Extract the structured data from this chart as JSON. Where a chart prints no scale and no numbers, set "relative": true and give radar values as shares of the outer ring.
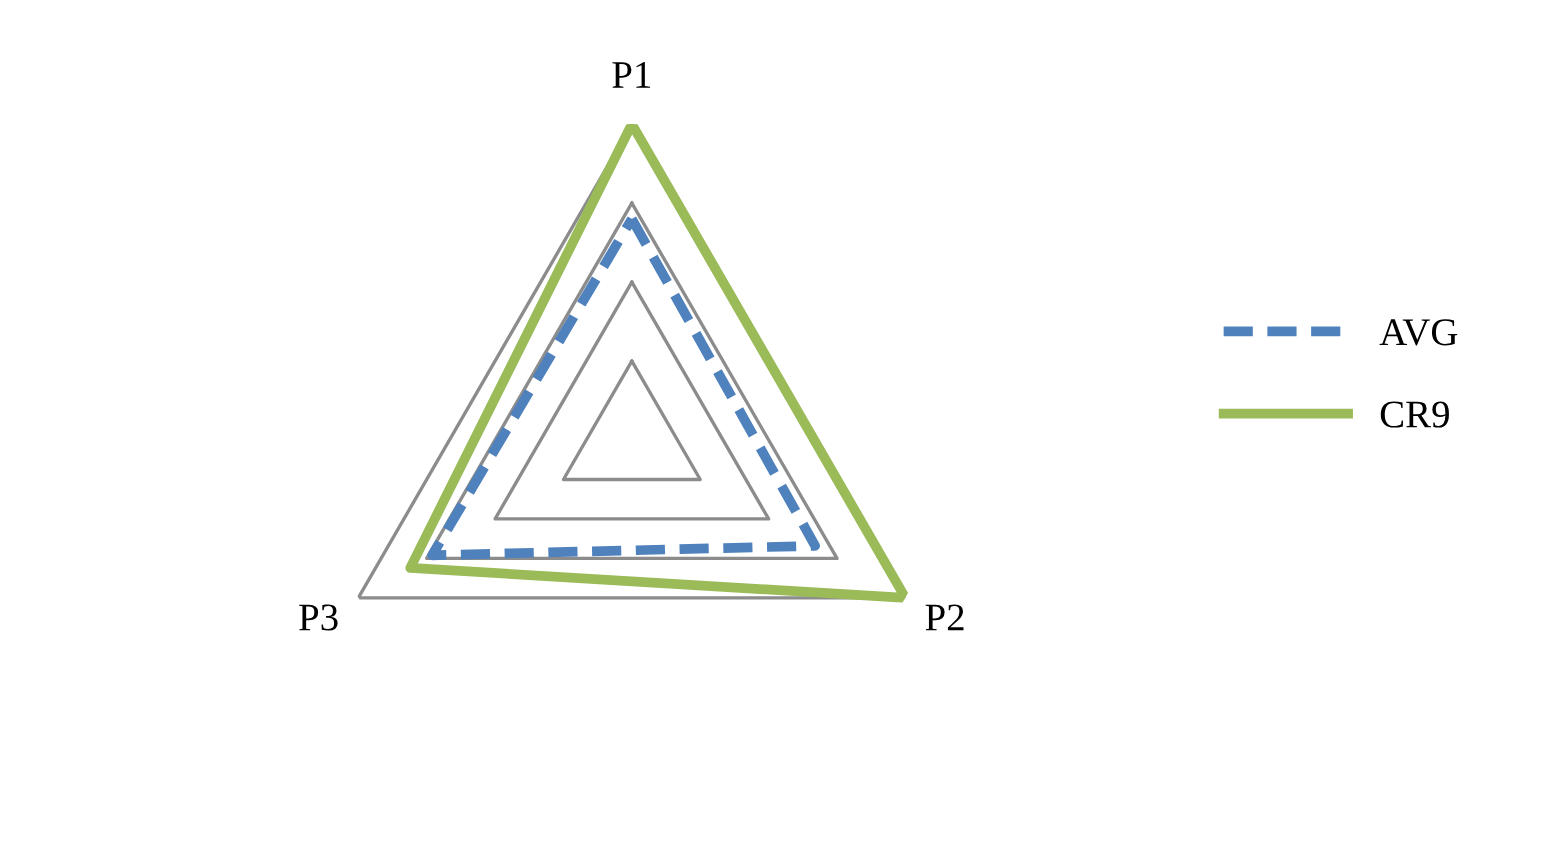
{
  "chart_data": {
    "type": "radar",
    "relative": true,
    "categories": [
      "P1",
      "P2",
      "P3"
    ],
    "series": [
      {
        "name": "AVG",
        "color": "#4f81bd",
        "values": [
          0.7,
          0.67,
          0.73
        ],
        "line_style": "dashed"
      },
      {
        "name": "CR9",
        "color": "#9bbb59",
        "values": [
          1.0,
          1.0,
          0.81
        ],
        "line_style": "solid"
      }
    ],
    "grid": true,
    "legend": "right",
    "marker": "none"
  }
}
